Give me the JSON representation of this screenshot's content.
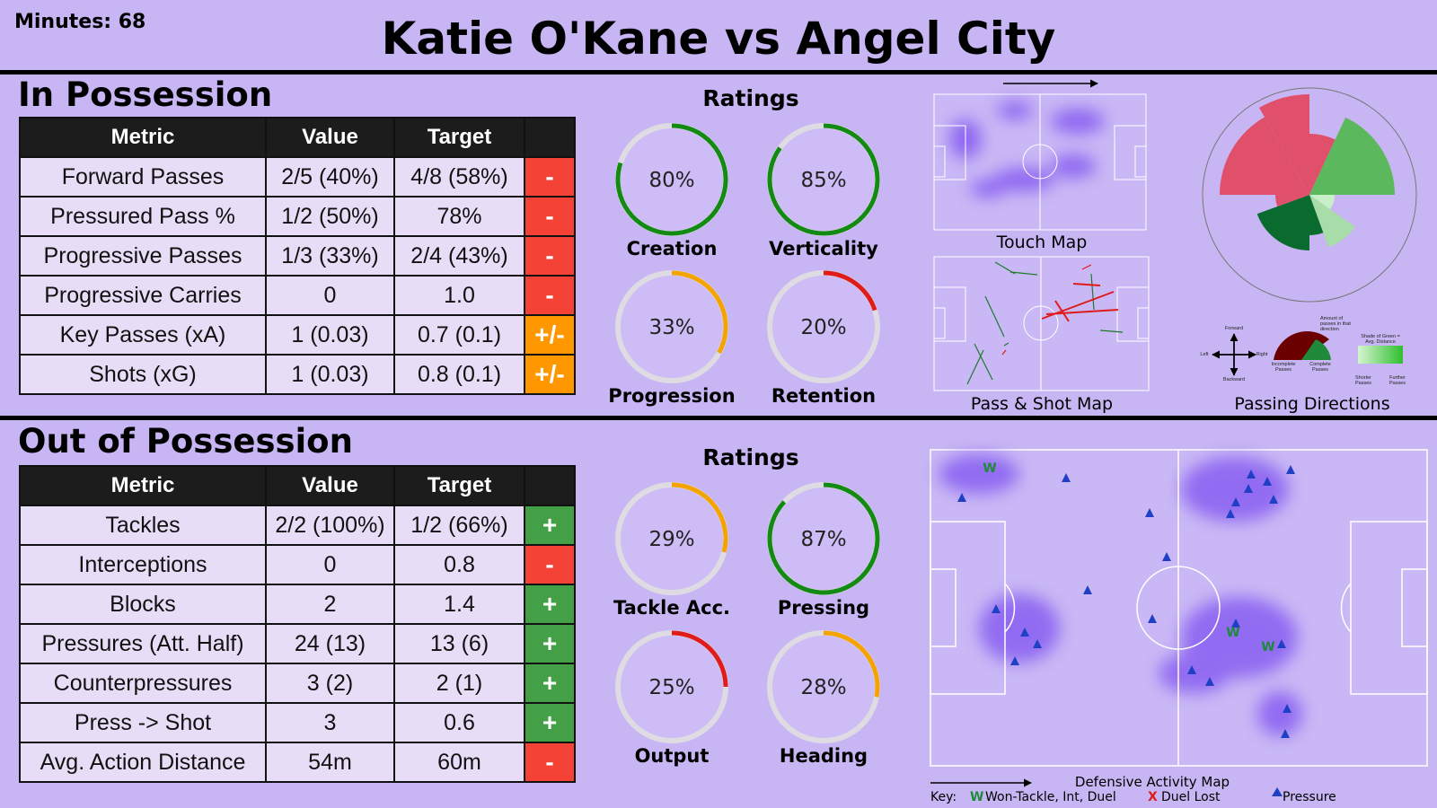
{
  "header": {
    "minutes": "Minutes: 68",
    "title": "Katie O'Kane vs Angel City"
  },
  "in_possession": {
    "title": "In Possession",
    "columns": [
      "Metric",
      "Value",
      "Target"
    ],
    "rows": [
      {
        "metric": "Forward Passes",
        "value": "2/5 (40%)",
        "target": "4/8 (58%)",
        "verdict": "-",
        "verdict_color": "#f44336"
      },
      {
        "metric": "Pressured Pass %",
        "value": "1/2 (50%)",
        "target": "78%",
        "verdict": "-",
        "verdict_color": "#f44336"
      },
      {
        "metric": "Progressive Passes",
        "value": "1/3 (33%)",
        "target": "2/4 (43%)",
        "verdict": "-",
        "verdict_color": "#f44336"
      },
      {
        "metric": "Progressive Carries",
        "value": "0",
        "target": "1.0",
        "verdict": "-",
        "verdict_color": "#f44336"
      },
      {
        "metric": "Key Passes (xA)",
        "value": "1 (0.03)",
        "target": "0.7 (0.1)",
        "verdict": "+/-",
        "verdict_color": "#ff9800"
      },
      {
        "metric": "Shots (xG)",
        "value": "1 (0.03)",
        "target": "0.8 (0.1)",
        "verdict": "+/-",
        "verdict_color": "#ff9800"
      }
    ]
  },
  "in_ratings": {
    "title": "Ratings",
    "gauges": [
      {
        "label": "Creation",
        "value": 80,
        "value_label": "80%",
        "color": "#138a13"
      },
      {
        "label": "Verticality",
        "value": 85,
        "value_label": "85%",
        "color": "#138a13"
      },
      {
        "label": "Progression",
        "value": 33,
        "value_label": "33%",
        "color": "#f5a300"
      },
      {
        "label": "Retention",
        "value": 20,
        "value_label": "20%",
        "color": "#e01b1b"
      }
    ]
  },
  "touch_map": {
    "caption": "Touch Map"
  },
  "pass_map": {
    "caption": "Pass & Shot Map"
  },
  "passing_directions": {
    "caption": "Passing Directions",
    "legend": {
      "forward": "Forward",
      "backward": "Backward",
      "left": "Left",
      "right": "Right",
      "amount": "Amount of passes in that direction",
      "incomplete": "Incomplete Passes",
      "complete": "Complete Passes",
      "shade": "Shade of Green = Avg. Distance",
      "shorter": "Shorter Passes",
      "further": "Further Passes"
    }
  },
  "out_possession": {
    "title": "Out of Possession",
    "columns": [
      "Metric",
      "Value",
      "Target"
    ],
    "rows": [
      {
        "metric": "Tackles",
        "value": "2/2 (100%)",
        "target": "1/2 (66%)",
        "verdict": "+",
        "verdict_color": "#43a047"
      },
      {
        "metric": "Interceptions",
        "value": "0",
        "target": "0.8",
        "verdict": "-",
        "verdict_color": "#f44336"
      },
      {
        "metric": "Blocks",
        "value": "2",
        "target": "1.4",
        "verdict": "+",
        "verdict_color": "#43a047"
      },
      {
        "metric": "Pressures (Att. Half)",
        "value": "24 (13)",
        "target": "13 (6)",
        "verdict": "+",
        "verdict_color": "#43a047"
      },
      {
        "metric": "Counterpressures",
        "value": "3 (2)",
        "target": "2 (1)",
        "verdict": "+",
        "verdict_color": "#43a047"
      },
      {
        "metric": "Press -> Shot",
        "value": "3",
        "target": "0.6",
        "verdict": "+",
        "verdict_color": "#43a047"
      },
      {
        "metric": "Avg. Action Distance",
        "value": "54m",
        "target": "60m",
        "verdict": "-",
        "verdict_color": "#f44336"
      }
    ]
  },
  "out_ratings": {
    "title": "Ratings",
    "gauges": [
      {
        "label": "Tackle Acc.",
        "value": 29,
        "value_label": "29%",
        "color": "#f5a300"
      },
      {
        "label": "Pressing",
        "value": 87,
        "value_label": "87%",
        "color": "#138a13"
      },
      {
        "label": "Output",
        "value": 25,
        "value_label": "25%",
        "color": "#e01b1b"
      },
      {
        "label": "Heading",
        "value": 28,
        "value_label": "28%",
        "color": "#f5a300"
      }
    ]
  },
  "defensive_map": {
    "caption": "Defensive Activity Map",
    "key_label": "Key:",
    "won_marker": "W",
    "won_label": "Won-Tackle, Int, Duel",
    "lost_marker": "X",
    "lost_label": "Duel Lost",
    "pressure_label": "Pressure"
  }
}
